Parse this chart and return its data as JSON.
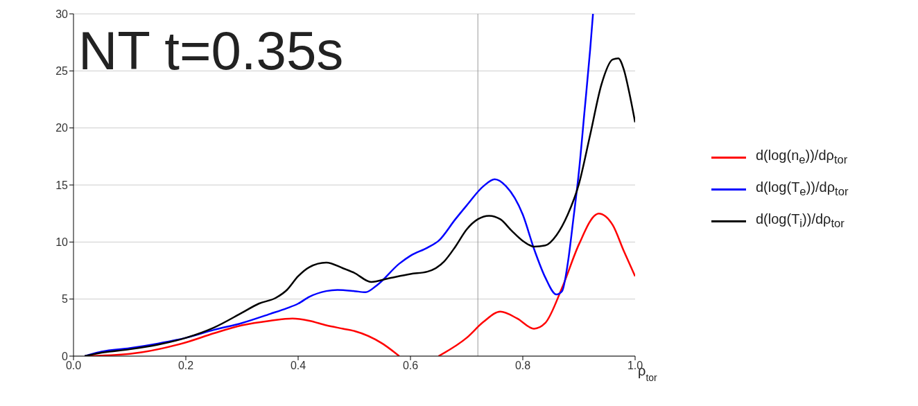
{
  "chart_data": {
    "type": "line",
    "title": "NT t=0.35s",
    "xlabel": "ρ$_{tor}$",
    "xlim": [
      0,
      1
    ],
    "xticks": [
      {
        "value": 0,
        "label": "0.0"
      },
      0.2,
      0.4,
      0.6,
      0.8,
      {
        "value": 1,
        "label": "1.0"
      }
    ],
    "ylim": [
      0,
      30
    ],
    "yticks": [
      0,
      5,
      10,
      15,
      20,
      25,
      30
    ],
    "grid": "y",
    "legend": "right",
    "marker": "none",
    "line_style": "solid",
    "ref_lines": [
      {
        "axis": "x",
        "value": 0.72,
        "color": "#999999"
      }
    ],
    "series": [
      {
        "name": "d(log(n$_{e}$))/dρ$_{tor}$",
        "color": "#ff0000",
        "x": [
          0.02,
          0.1,
          0.2,
          0.25,
          0.3,
          0.35,
          0.39,
          0.42,
          0.45,
          0.48,
          0.5,
          0.55,
          0.58,
          0.6,
          0.62,
          0.65,
          0.7,
          0.73,
          0.76,
          0.79,
          0.82,
          0.84,
          0.87,
          0.9,
          0.93,
          0.935,
          0.96,
          0.98,
          1.0
        ],
        "values": [
          0,
          0.2,
          1.2,
          2.0,
          2.7,
          3.1,
          3.3,
          3.1,
          2.7,
          2.4,
          2.2,
          1.1,
          0,
          null,
          null,
          0,
          1.6,
          3.0,
          3.9,
          3.3,
          2.4,
          2.9,
          6.0,
          9.8,
          12.4,
          12.5,
          11.5,
          9.2,
          7.0
        ]
      },
      {
        "name": "d(log(T$_{e}$))/dρ$_{tor}$",
        "color": "#0000ff",
        "x": [
          0.02,
          0.05,
          0.1,
          0.15,
          0.2,
          0.25,
          0.3,
          0.35,
          0.38,
          0.4,
          0.42,
          0.45,
          0.47,
          0.5,
          0.52,
          0.54,
          0.58,
          0.6,
          0.63,
          0.65,
          0.68,
          0.7,
          0.73,
          0.75,
          0.77,
          0.8,
          0.82,
          0.84,
          0.86,
          0.87,
          0.88,
          0.89,
          0.9,
          0.91,
          0.92,
          0.925
        ],
        "values": [
          0,
          0.4,
          0.7,
          1.1,
          1.6,
          2.3,
          2.9,
          3.7,
          4.2,
          4.6,
          5.2,
          5.7,
          5.8,
          5.7,
          5.6,
          6.2,
          8.1,
          8.8,
          9.5,
          10.1,
          12.0,
          13.2,
          14.9,
          15.5,
          14.9,
          12.4,
          9.4,
          6.9,
          5.4,
          5.7,
          8.1,
          12.0,
          16.2,
          21.5,
          26.9,
          30
        ]
      },
      {
        "name": "d(log(T$_{i}$))/dρ$_{tor}$",
        "color": "#000000",
        "x": [
          0.02,
          0.05,
          0.1,
          0.15,
          0.2,
          0.25,
          0.3,
          0.33,
          0.36,
          0.38,
          0.4,
          0.42,
          0.45,
          0.48,
          0.5,
          0.53,
          0.56,
          0.6,
          0.63,
          0.66,
          0.68,
          0.7,
          0.72,
          0.74,
          0.76,
          0.78,
          0.8,
          0.82,
          0.84,
          0.86,
          0.88,
          0.9,
          0.92,
          0.94,
          0.96,
          0.97,
          0.98,
          0.99,
          1.0
        ],
        "values": [
          0,
          0.3,
          0.6,
          1.0,
          1.6,
          2.5,
          3.8,
          4.6,
          5.1,
          5.8,
          7.0,
          7.8,
          8.2,
          7.7,
          7.3,
          6.5,
          6.8,
          7.2,
          7.4,
          8.3,
          9.6,
          11.1,
          12.0,
          12.3,
          12.0,
          11.0,
          10.1,
          9.6,
          9.7,
          10.6,
          12.4,
          15.1,
          19.4,
          23.8,
          26.0,
          26.1,
          25.1,
          23.0,
          20.5
        ]
      }
    ]
  }
}
